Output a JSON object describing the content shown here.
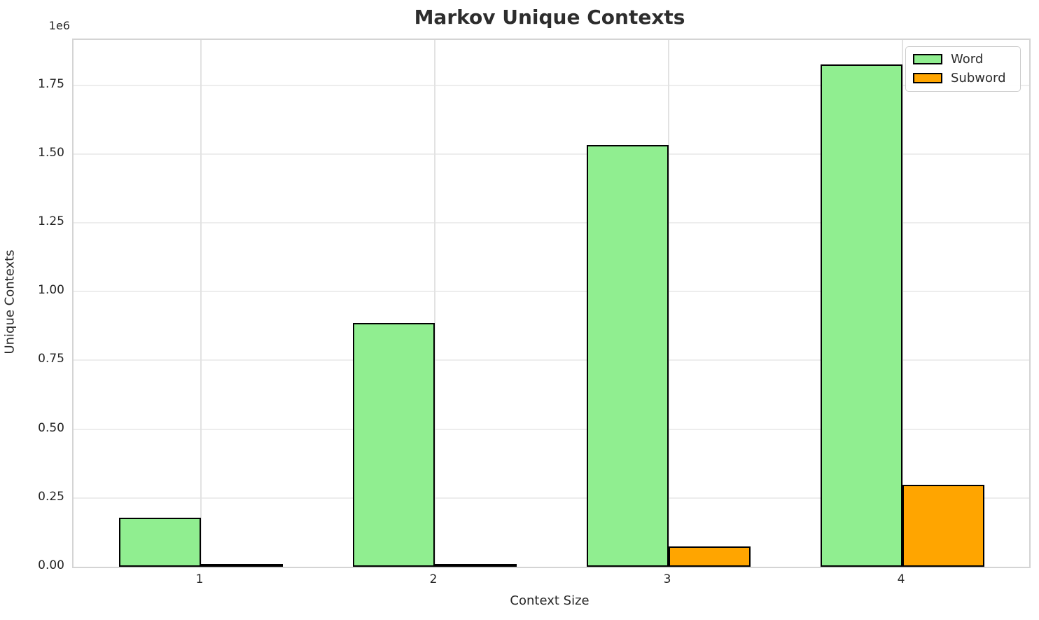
{
  "chart_data": {
    "type": "bar",
    "title": "Markov Unique Contexts",
    "xlabel": "Context Size",
    "ylabel": "Unique Contexts",
    "offset_text": "1e6",
    "categories": [
      "1",
      "2",
      "3",
      "4"
    ],
    "series": [
      {
        "name": "Word",
        "color": "#90EE90",
        "values": [
          178000,
          887000,
          1534000,
          1827000
        ]
      },
      {
        "name": "Subword",
        "color": "#FFA500",
        "values": [
          2000,
          10000,
          73000,
          299000
        ]
      }
    ],
    "bar_edge_color": "#000000",
    "ylim": [
      0,
      1915000
    ],
    "yticks": [
      0,
      250000,
      500000,
      750000,
      1000000,
      1250000,
      1500000,
      1750000
    ],
    "ytick_labels": [
      "0.00",
      "0.25",
      "0.50",
      "0.75",
      "1.00",
      "1.25",
      "1.50",
      "1.75"
    ],
    "grid": true,
    "legend_position": "upper right",
    "legend": {
      "items": [
        {
          "label": "Word"
        },
        {
          "label": "Subword"
        }
      ]
    }
  }
}
